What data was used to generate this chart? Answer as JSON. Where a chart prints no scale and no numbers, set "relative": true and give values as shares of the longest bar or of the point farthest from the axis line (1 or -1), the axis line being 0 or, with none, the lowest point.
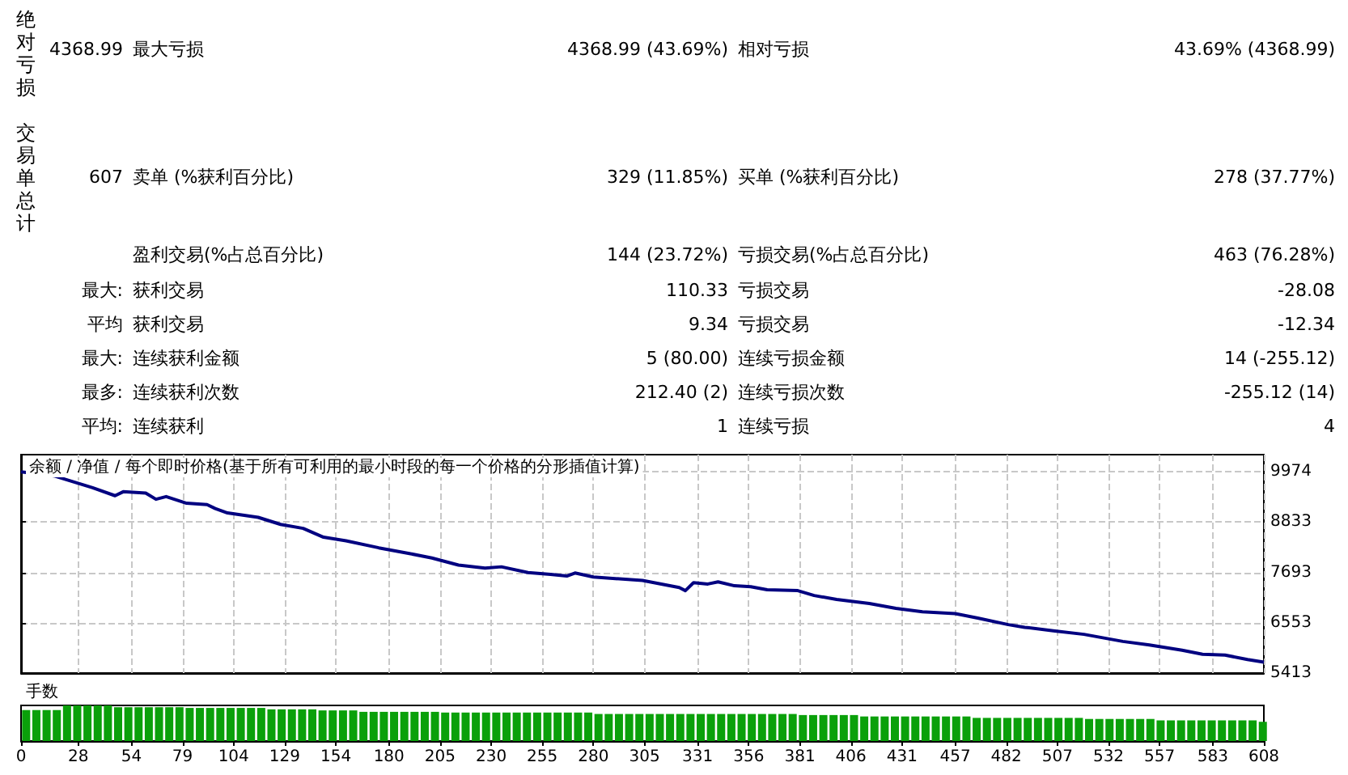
{
  "chart_data": [
    {
      "type": "other",
      "annotations": [
        "绝对亏损",
        "4368.99",
        "最大亏损",
        "4368.99 (43.69%)",
        "相对亏损",
        "43.69% (4368.99)",
        "交易单总计",
        "607",
        "卖单 (%获利百分比)",
        "329 (11.85%)",
        "买单 (%获利百分比)",
        "278 (37.77%)",
        "盈利交易(%占总百分比)",
        "144 (23.72%)",
        "亏损交易(%占总百分比)",
        "463 (76.28%)",
        "最大:",
        "获利交易",
        "110.33",
        "亏损交易",
        "-28.08",
        "平均",
        "获利交易",
        "9.34",
        "亏损交易",
        "-12.34",
        "最大:",
        "连续获利金额",
        "5 (80.00)",
        "连续亏损金额",
        "14 (-255.12)",
        "最多:",
        "连续获利次数",
        "212.40 (2)",
        "连续亏损次数",
        "-255.12 (14)",
        "平均:",
        "连续获利",
        "1",
        "连续亏损",
        "4"
      ]
    },
    {
      "type": "line",
      "title": "余额 / 净值 / 每个即时价格(基于所有可利用的最小时段的每一个价格的分形插值计算)",
      "xlim": [
        0,
        608
      ],
      "xticks": [
        0,
        28,
        54,
        79,
        104,
        129,
        154,
        180,
        205,
        230,
        255,
        280,
        305,
        331,
        356,
        381,
        406,
        431,
        457,
        482,
        507,
        532,
        557,
        583,
        608
      ],
      "ylim": [
        5413,
        10360
      ],
      "yticks": [
        5413,
        6553,
        7693,
        8833,
        9974
      ],
      "grid": true,
      "tick_labels": "y",
      "marker": "none",
      "line_style": "solid",
      "series": [
        {
          "color": "#000080",
          "x": [
            0,
            16,
            35,
            46,
            50,
            61,
            66,
            71,
            81,
            91,
            95,
            101,
            116,
            127,
            138,
            148,
            159,
            175,
            190,
            201,
            214,
            227,
            235,
            248,
            259,
            267,
            271,
            280,
            304,
            322,
            325,
            329,
            336,
            341,
            349,
            357,
            365,
            380,
            388,
            399,
            415,
            428,
            441,
            457,
            468,
            483,
            491,
            505,
            520,
            539,
            552,
            568,
            578,
            589,
            600,
            608
          ],
          "values": [
            9970,
            9880,
            9610,
            9430,
            9520,
            9490,
            9350,
            9410,
            9260,
            9230,
            9140,
            9040,
            8940,
            8780,
            8690,
            8490,
            8410,
            8250,
            8120,
            8020,
            7860,
            7790,
            7820,
            7690,
            7650,
            7610,
            7680,
            7590,
            7510,
            7350,
            7280,
            7460,
            7430,
            7480,
            7390,
            7370,
            7300,
            7280,
            7170,
            7080,
            6990,
            6880,
            6800,
            6760,
            6660,
            6510,
            6450,
            6370,
            6290,
            6130,
            6050,
            5930,
            5840,
            5820,
            5720,
            5660
          ]
        }
      ]
    },
    {
      "type": "bar",
      "title": "手数",
      "relative": true,
      "xlim": [
        0,
        608
      ],
      "xticks": [
        0,
        28,
        54,
        79,
        104,
        129,
        154,
        180,
        205,
        230,
        255,
        280,
        305,
        331,
        356,
        381,
        406,
        431,
        457,
        482,
        507,
        532,
        557,
        583,
        608
      ],
      "tick_labels": "x",
      "color": "#0aa00a",
      "x": [
        2.5,
        7.5,
        12.5,
        17.5,
        22.5,
        27.5,
        32.5,
        37.5,
        42.5,
        47.5,
        52.5,
        57.5,
        62.5,
        67.5,
        72.5,
        77.5,
        82.5,
        87.5,
        92.5,
        97.5,
        102.5,
        107.5,
        112.5,
        117.5,
        122.5,
        127.5,
        132.5,
        137.5,
        142.5,
        147.5,
        152.5,
        157.5,
        162.5,
        167.5,
        172.5,
        177.5,
        182.5,
        187.5,
        192.5,
        197.5,
        202.5,
        207.5,
        212.5,
        217.5,
        222.5,
        227.5,
        232.5,
        237.5,
        242.5,
        247.5,
        252.5,
        257.5,
        262.5,
        267.5,
        272.5,
        277.5,
        282.5,
        287.5,
        292.5,
        297.5,
        302.5,
        307.5,
        312.5,
        317.5,
        322.5,
        327.5,
        332.5,
        337.5,
        342.5,
        347.5,
        352.5,
        357.5,
        362.5,
        367.5,
        372.5,
        377.5,
        382.5,
        387.5,
        392.5,
        397.5,
        402.5,
        407.5,
        412.5,
        417.5,
        422.5,
        427.5,
        432.5,
        437.5,
        442.5,
        447.5,
        452.5,
        457.5,
        462.5,
        467.5,
        472.5,
        477.5,
        482.5,
        487.5,
        492.5,
        497.5,
        502.5,
        507.5,
        512.5,
        517.5,
        522.5,
        527.5,
        532.5,
        537.5,
        542.5,
        547.5,
        552.5,
        557.5,
        562.5,
        567.5,
        572.5,
        577.5,
        582.5,
        587.5,
        592.5,
        597.5,
        602.5,
        607.5
      ],
      "values": [
        0.87,
        0.87,
        0.87,
        0.87,
        1,
        1,
        1,
        1,
        1,
        0.95,
        0.95,
        0.95,
        0.95,
        0.95,
        0.95,
        0.95,
        0.93,
        0.93,
        0.93,
        0.93,
        0.93,
        0.93,
        0.93,
        0.93,
        0.89,
        0.89,
        0.89,
        0.89,
        0.89,
        0.86,
        0.86,
        0.86,
        0.86,
        0.82,
        0.82,
        0.82,
        0.82,
        0.82,
        0.82,
        0.82,
        0.82,
        0.8,
        0.8,
        0.8,
        0.8,
        0.8,
        0.8,
        0.8,
        0.8,
        0.8,
        0.8,
        0.8,
        0.8,
        0.8,
        0.8,
        0.8,
        0.76,
        0.76,
        0.76,
        0.76,
        0.76,
        0.76,
        0.76,
        0.76,
        0.76,
        0.76,
        0.76,
        0.76,
        0.76,
        0.76,
        0.76,
        0.76,
        0.76,
        0.76,
        0.76,
        0.76,
        0.73,
        0.73,
        0.73,
        0.73,
        0.73,
        0.73,
        0.69,
        0.69,
        0.69,
        0.69,
        0.69,
        0.69,
        0.69,
        0.69,
        0.69,
        0.69,
        0.69,
        0.65,
        0.65,
        0.65,
        0.65,
        0.65,
        0.65,
        0.65,
        0.65,
        0.65,
        0.65,
        0.65,
        0.62,
        0.62,
        0.62,
        0.62,
        0.62,
        0.62,
        0.62,
        0.58,
        0.58,
        0.58,
        0.58,
        0.58,
        0.58,
        0.58,
        0.58,
        0.58,
        0.58,
        0.54
      ]
    }
  ]
}
